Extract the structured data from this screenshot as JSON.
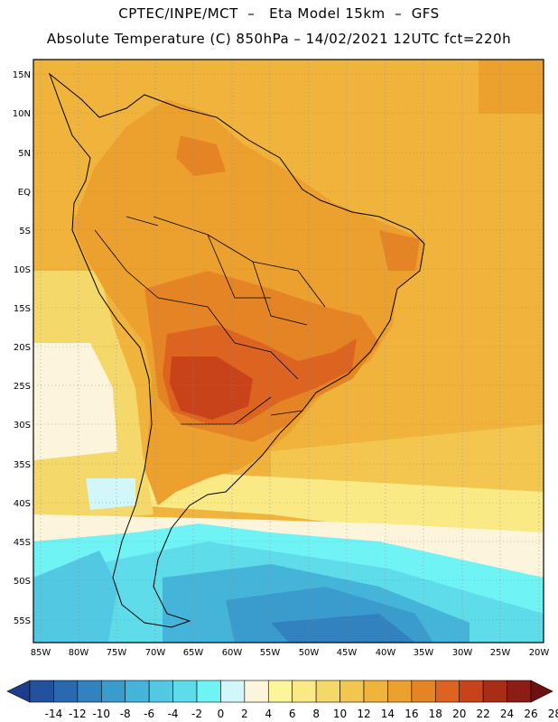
{
  "header": {
    "line1": "CPTEC/INPE/MCT  –   Eta Model 15km  –  GFS",
    "line2": "Absolute Temperature (C) 850hPa – 14/02/2021 12UTC fct=220h"
  },
  "map": {
    "lat_labels": [
      "15N",
      "10N",
      "5N",
      "EQ",
      "5S",
      "10S",
      "15S",
      "20S",
      "25S",
      "30S",
      "35S",
      "40S",
      "45S",
      "50S",
      "55S"
    ],
    "lon_labels": [
      "85W",
      "80W",
      "75W",
      "70W",
      "65W",
      "60W",
      "55W",
      "50W",
      "45W",
      "40W",
      "35W",
      "30W",
      "25W",
      "20W"
    ],
    "lat_range": [
      -58,
      16
    ],
    "lon_range": [
      -86,
      -19
    ]
  },
  "colorbar": {
    "levels": [
      "-14",
      "-12",
      "-10",
      "-8",
      "-6",
      "-4",
      "-2",
      "0",
      "2",
      "4",
      "6",
      "8",
      "10",
      "12",
      "14",
      "16",
      "18",
      "20",
      "22",
      "24",
      "26",
      "28"
    ],
    "colors": [
      "#1e3c8c",
      "#22529e",
      "#2a68b0",
      "#3282c0",
      "#3a9ccc",
      "#44b4d8",
      "#52c8e2",
      "#5edcea",
      "#6ff3f5",
      "#d2f7fa",
      "#fdf4dc",
      "#fdf59c",
      "#faea86",
      "#f5d86a",
      "#f2c64f",
      "#f0b43c",
      "#eca12e",
      "#e48424",
      "#dd6420",
      "#c8421a",
      "#a82d16",
      "#8a1e14",
      "#6e1010"
    ]
  }
}
